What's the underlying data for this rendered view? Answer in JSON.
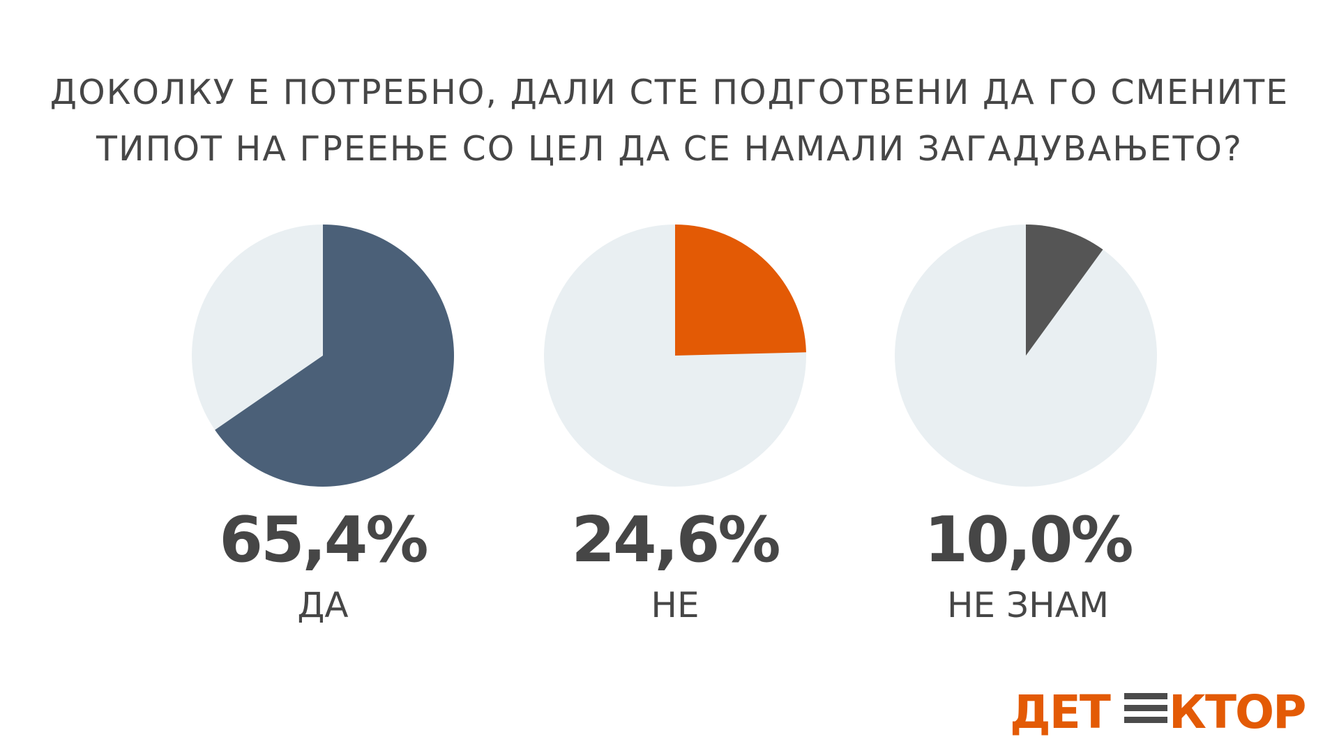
{
  "chart_data": {
    "type": "pie",
    "title": "ДОКОЛКУ Е ПОТРЕБНО, ДАЛИ СТЕ ПОДГОТВЕНИ ДА ГО СМЕНИТЕ ТИПОТ НА ГРЕЕЊЕ СО ЦЕЛ ДА СЕ НАМАЛИ ЗАГАДУВАЊЕТО?",
    "title_lines": [
      "ДОКОЛКУ Е ПОТРЕБНО, ДАЛИ СТЕ ПОДГОТВЕНИ ДА ГО СМЕНИТЕ",
      "ТИПОТ НА ГРЕЕЊЕ СО ЦЕЛ ДА СЕ НАМАЛИ ЗАГАДУВАЊЕТО?"
    ],
    "background_color": "#e9eff2",
    "slices": [
      {
        "label": "ДА",
        "value": 65.4,
        "value_label": "65,4%",
        "color": "#4b6078"
      },
      {
        "label": "НЕ",
        "value": 24.6,
        "value_label": "24,6%",
        "color": "#e35a05"
      },
      {
        "label": "НЕ ЗНАМ",
        "value": 10.0,
        "value_label": "10,0%",
        "color": "#555555"
      }
    ]
  },
  "logo": {
    "text": "ДЕТЕКТОР",
    "color": "#e35a05",
    "bars_color": "#4b4b4b"
  }
}
